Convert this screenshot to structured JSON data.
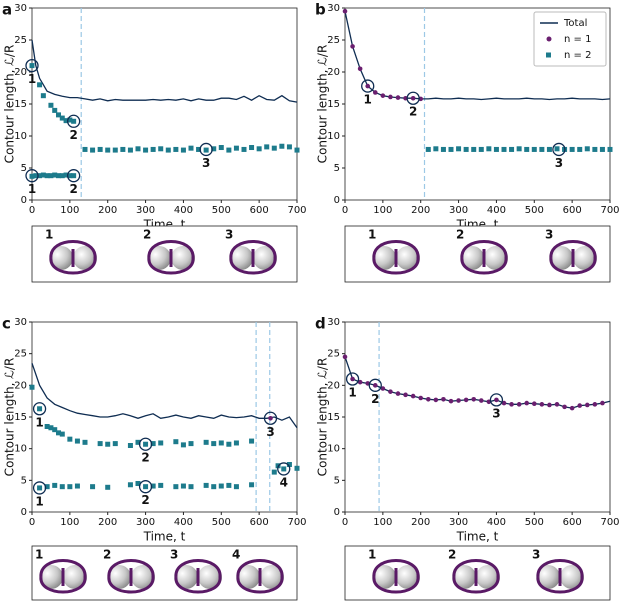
{
  "chart_data": [
    {
      "type": "line",
      "label": "a",
      "xlabel": "Time, t",
      "ylabel": "Contour length, ℒ/R",
      "xlim": [
        0,
        700
      ],
      "xticks": [
        0,
        100,
        200,
        300,
        400,
        500,
        600,
        700
      ],
      "ylim": [
        0,
        30
      ],
      "yticks": [
        0,
        5,
        10,
        15,
        20,
        25,
        30
      ],
      "vlines": [
        130
      ],
      "series": [
        {
          "color": "#0f2d52",
          "style": "line",
          "x": [
            0,
            10,
            20,
            30,
            40,
            60,
            80,
            100,
            120,
            140,
            160,
            180,
            200,
            220,
            240,
            260,
            280,
            300,
            320,
            340,
            360,
            380,
            400,
            420,
            440,
            460,
            480,
            500,
            520,
            540,
            560,
            580,
            600,
            620,
            640,
            660,
            680,
            700
          ],
          "values": [
            25,
            21,
            19,
            18,
            17,
            16.5,
            16.2,
            16,
            16,
            15.8,
            15.6,
            15.8,
            15.5,
            15.7,
            15.6,
            15.6,
            15.6,
            15.6,
            15.7,
            15.6,
            15.7,
            15.6,
            15.8,
            15.5,
            15.8,
            15.6,
            15.6,
            15.9,
            15.9,
            15.7,
            16.2,
            15.6,
            16.3,
            15.7,
            15.6,
            16.3,
            15.5,
            15.3
          ]
        },
        {
          "color": "#1d7b8c",
          "style": "square",
          "x": [
            0,
            20,
            30,
            50,
            60,
            70,
            80,
            90,
            100,
            110
          ],
          "values": [
            21,
            18,
            16.3,
            14.8,
            14,
            13.3,
            12.8,
            12.4,
            12.5,
            12.3
          ]
        },
        {
          "color": "#1d7b8c",
          "style": "square",
          "x": [
            0,
            10,
            20,
            30,
            40,
            50,
            60,
            70,
            80,
            90,
            100,
            110
          ],
          "values": [
            3.7,
            3.8,
            3.8,
            3.9,
            3.8,
            3.8,
            3.9,
            3.8,
            3.8,
            3.9,
            3.8,
            3.8
          ]
        },
        {
          "color": "#1d7b8c",
          "style": "square",
          "x": [
            140,
            160,
            180,
            200,
            220,
            240,
            260,
            280,
            300,
            320,
            340,
            360,
            380,
            400,
            420,
            440,
            460,
            480,
            500,
            520,
            540,
            560,
            580,
            600,
            620,
            640,
            660,
            680,
            700
          ],
          "values": [
            7.9,
            7.8,
            7.9,
            7.8,
            7.8,
            7.9,
            7.8,
            8,
            7.8,
            7.9,
            8,
            7.8,
            7.9,
            7.8,
            8.1,
            7.9,
            7.8,
            8,
            8.2,
            7.8,
            8.1,
            7.9,
            8.2,
            8,
            8.3,
            8.1,
            8.4,
            8.3,
            7.8
          ]
        }
      ],
      "annotations": [
        {
          "x": 0,
          "y": 21,
          "label": "1"
        },
        {
          "x": 110,
          "y": 12.3,
          "label": "2"
        },
        {
          "x": 0,
          "y": 3.8,
          "label": "1"
        },
        {
          "x": 110,
          "y": 3.8,
          "label": "2"
        },
        {
          "x": 460,
          "y": 7.9,
          "label": "3"
        }
      ]
    },
    {
      "type": "line",
      "label": "b",
      "xlabel": "Time, t",
      "ylabel": "Contour length, ℒ/R",
      "xlim": [
        0,
        700
      ],
      "xticks": [
        0,
        100,
        200,
        300,
        400,
        500,
        600,
        700
      ],
      "ylim": [
        0,
        30
      ],
      "yticks": [
        0,
        5,
        10,
        15,
        20,
        25,
        30
      ],
      "vlines": [
        210
      ],
      "legend": "upper right",
      "series": [
        {
          "name": "Total",
          "color": "#0f2d52",
          "style": "line",
          "x": [
            0,
            20,
            40,
            60,
            80,
            100,
            120,
            140,
            160,
            180,
            200,
            220,
            240,
            260,
            280,
            300,
            320,
            340,
            360,
            380,
            400,
            420,
            440,
            460,
            480,
            500,
            520,
            540,
            560,
            580,
            600,
            620,
            640,
            660,
            680,
            700
          ],
          "values": [
            29.5,
            24,
            20.5,
            17.8,
            16.8,
            16.3,
            16.1,
            16,
            15.9,
            15.9,
            15.8,
            15.8,
            15.9,
            15.8,
            15.8,
            15.9,
            15.8,
            15.8,
            15.7,
            15.8,
            15.9,
            15.8,
            15.8,
            15.8,
            15.9,
            15.8,
            15.8,
            15.7,
            15.8,
            15.8,
            15.9,
            15.8,
            15.8,
            15.8,
            15.7,
            15.8
          ]
        },
        {
          "name": "n = 1",
          "color": "#6a1f6f",
          "style": "circle",
          "x": [
            0,
            20,
            40,
            60,
            80,
            100,
            120,
            140,
            160,
            180,
            200
          ],
          "values": [
            29.5,
            24,
            20.5,
            17.8,
            16.8,
            16.3,
            16.1,
            16,
            15.9,
            15.9,
            15.8
          ]
        },
        {
          "name": "n = 2",
          "color": "#1d7b8c",
          "style": "square",
          "x": [
            220,
            240,
            260,
            280,
            300,
            320,
            340,
            360,
            380,
            400,
            420,
            440,
            460,
            480,
            500,
            520,
            540,
            560,
            580,
            600,
            620,
            640,
            660,
            680,
            700
          ],
          "values": [
            7.9,
            8,
            7.9,
            7.9,
            8,
            7.9,
            7.9,
            7.9,
            8,
            7.9,
            7.9,
            7.9,
            8,
            7.9,
            7.9,
            7.9,
            7.9,
            8,
            7.9,
            7.9,
            7.9,
            8,
            7.9,
            7.9,
            7.9
          ]
        }
      ],
      "annotations": [
        {
          "x": 60,
          "y": 17.8,
          "label": "1"
        },
        {
          "x": 180,
          "y": 15.9,
          "label": "2"
        },
        {
          "x": 565,
          "y": 7.9,
          "label": "3"
        }
      ]
    },
    {
      "type": "line",
      "label": "c",
      "xlabel": "Time, t",
      "ylabel": "Contour length, ℒ/R",
      "xlim": [
        0,
        700
      ],
      "xticks": [
        0,
        100,
        200,
        300,
        400,
        500,
        600,
        700
      ],
      "ylim": [
        0,
        30
      ],
      "yticks": [
        0,
        5,
        10,
        15,
        20,
        25,
        30
      ],
      "vlines": [
        592,
        628
      ],
      "series": [
        {
          "color": "#0f2d52",
          "style": "line",
          "x": [
            0,
            20,
            40,
            60,
            80,
            100,
            120,
            140,
            160,
            180,
            200,
            220,
            240,
            260,
            280,
            300,
            320,
            340,
            360,
            380,
            400,
            420,
            440,
            460,
            480,
            500,
            520,
            540,
            560,
            580,
            600,
            620,
            640,
            660,
            680,
            700
          ],
          "values": [
            23.5,
            20,
            18,
            17,
            16.5,
            16,
            15.6,
            15.4,
            15.2,
            15,
            15,
            15.2,
            15.5,
            15.2,
            14.8,
            15.2,
            15.5,
            14.8,
            15,
            15.3,
            15,
            14.8,
            15.2,
            15,
            14.8,
            15.3,
            15,
            14.9,
            15,
            15.2,
            14.8,
            14.8,
            15,
            14.5,
            15,
            13.3
          ]
        },
        {
          "color": "#1d7b8c",
          "style": "square",
          "x": [
            0,
            20,
            40,
            50,
            60,
            70,
            80,
            100,
            120,
            140,
            180,
            200,
            220,
            260,
            280,
            300,
            320,
            340,
            380,
            400,
            420,
            460,
            480,
            500,
            520,
            540,
            580
          ],
          "values": [
            19.7,
            16.3,
            13.5,
            13.3,
            13,
            12.5,
            12.3,
            11.5,
            11.2,
            11,
            10.8,
            10.7,
            10.8,
            10.5,
            11,
            10.7,
            10.8,
            10.9,
            11.1,
            10.6,
            10.8,
            11,
            10.8,
            10.9,
            10.7,
            10.9,
            11.2
          ]
        },
        {
          "color": "#1d7b8c",
          "style": "square",
          "x": [
            20,
            40,
            60,
            80,
            100,
            120,
            160,
            200,
            260,
            280,
            300,
            320,
            340,
            380,
            400,
            420,
            460,
            480,
            500,
            520,
            540,
            580
          ],
          "values": [
            3.8,
            4,
            4.2,
            4,
            4,
            4.1,
            4,
            3.9,
            4.3,
            4.5,
            4,
            4.1,
            4.2,
            4,
            4.1,
            4,
            4.2,
            4,
            4.1,
            4.2,
            4,
            4.3
          ]
        },
        {
          "color": "#1d7b8c",
          "style": "square",
          "x": [
            640,
            650,
            665,
            680,
            700
          ],
          "values": [
            6.3,
            7.3,
            6.8,
            7.5,
            6.9
          ]
        },
        {
          "color": "#6a1f6f",
          "style": "circle",
          "x": [
            630
          ],
          "values": [
            14.8
          ]
        }
      ],
      "annotations": [
        {
          "x": 20,
          "y": 16.3,
          "label": "1"
        },
        {
          "x": 20,
          "y": 3.8,
          "label": "1"
        },
        {
          "x": 300,
          "y": 10.7,
          "label": "2"
        },
        {
          "x": 300,
          "y": 4,
          "label": "2"
        },
        {
          "x": 630,
          "y": 14.8,
          "label": "3"
        },
        {
          "x": 665,
          "y": 6.8,
          "label": "4"
        }
      ]
    },
    {
      "type": "line",
      "label": "d",
      "xlabel": "Time, t",
      "ylabel": "Contour length, ℒ/R",
      "xlim": [
        0,
        700
      ],
      "xticks": [
        0,
        100,
        200,
        300,
        400,
        500,
        600,
        700
      ],
      "ylim": [
        0,
        30
      ],
      "yticks": [
        0,
        5,
        10,
        15,
        20,
        25,
        30
      ],
      "vlines": [
        90
      ],
      "series": [
        {
          "color": "#0f2d52",
          "style": "line",
          "x": [
            0,
            20,
            40,
            60,
            80,
            100,
            120,
            140,
            160,
            180,
            200,
            220,
            240,
            260,
            280,
            300,
            320,
            340,
            360,
            380,
            400,
            420,
            440,
            460,
            480,
            500,
            520,
            540,
            560,
            580,
            600,
            620,
            640,
            660,
            680,
            700
          ],
          "values": [
            24.5,
            21,
            20.5,
            20.3,
            20,
            19.5,
            19,
            18.7,
            18.5,
            18.3,
            18,
            17.8,
            17.7,
            17.8,
            17.5,
            17.6,
            17.7,
            17.8,
            17.6,
            17.4,
            17.7,
            17.2,
            17,
            17,
            17.2,
            17.1,
            17,
            16.9,
            17,
            16.6,
            16.4,
            16.8,
            16.9,
            17,
            17.2,
            17.5
          ]
        },
        {
          "color": "#6a1f6f",
          "style": "circle",
          "x": [
            0,
            20,
            40,
            60,
            80,
            100,
            120,
            140,
            160,
            180,
            200,
            220,
            240,
            260,
            280,
            300,
            320,
            340,
            360,
            380,
            400,
            420,
            440,
            460,
            480,
            500,
            520,
            540,
            560,
            580,
            600,
            620,
            640,
            660,
            680
          ],
          "values": [
            24.5,
            21,
            20.5,
            20.3,
            20,
            19.5,
            19,
            18.7,
            18.5,
            18.3,
            18,
            17.8,
            17.7,
            17.8,
            17.5,
            17.6,
            17.7,
            17.8,
            17.6,
            17.4,
            17.7,
            17.2,
            17,
            17,
            17.2,
            17.1,
            17,
            16.9,
            17,
            16.6,
            16.4,
            16.8,
            16.9,
            17,
            17.2
          ]
        }
      ],
      "annotations": [
        {
          "x": 20,
          "y": 21,
          "label": "1"
        },
        {
          "x": 80,
          "y": 20,
          "label": "2"
        },
        {
          "x": 400,
          "y": 17.7,
          "label": "3"
        }
      ]
    }
  ],
  "strips": [
    [
      "1",
      "2",
      "3"
    ],
    [
      "1",
      "2",
      "3"
    ],
    [
      "1",
      "2",
      "3",
      "4"
    ],
    [
      "1",
      "2",
      "3"
    ]
  ]
}
